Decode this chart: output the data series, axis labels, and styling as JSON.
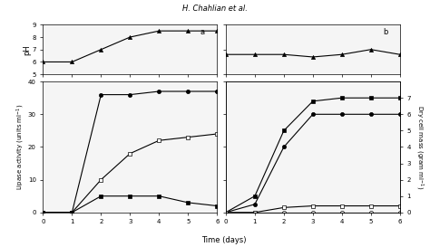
{
  "title": "H. Chahlian et al.",
  "time_days": [
    0,
    1,
    2,
    3,
    4,
    5,
    6
  ],
  "panel_a_ph": {
    "triangle": [
      6.0,
      6.0,
      7.0,
      8.0,
      8.5,
      8.5,
      8.5
    ]
  },
  "panel_b_ph": {
    "triangle": [
      5.9,
      5.9,
      5.9,
      5.85,
      5.9,
      6.0,
      5.9
    ]
  },
  "panel_c_lipase": {
    "filled_circle": [
      0,
      0,
      36,
      36,
      37,
      37,
      37
    ],
    "open_square": [
      0,
      0,
      10,
      18,
      22,
      23,
      24
    ],
    "filled_square": [
      0,
      0,
      5,
      5,
      5,
      3,
      2
    ]
  },
  "panel_d_dcm": {
    "filled_square": [
      0,
      1,
      5,
      6.8,
      7.0,
      7.0,
      7.0
    ],
    "filled_circle": [
      0,
      0.5,
      4,
      6.0,
      6.0,
      6.0,
      6.0
    ],
    "open_square": [
      0,
      0,
      0.3,
      0.4,
      0.4,
      0.4,
      0.4
    ],
    "open_circle": [
      0,
      0,
      0,
      0,
      0,
      0,
      0
    ]
  },
  "ph_ylim_a": [
    5,
    9
  ],
  "ph_yticks_a": [
    5,
    6,
    7,
    8,
    9
  ],
  "ph_ylim_b": [
    5.5,
    6.5
  ],
  "ph_yticks_b": [
    5.5,
    6.0,
    6.5
  ],
  "lipase_ylim": [
    0,
    40
  ],
  "lipase_yticks": [
    0,
    10,
    20,
    30,
    40
  ],
  "dcm_ylim": [
    0,
    8
  ],
  "dcm_yticks": [
    0,
    2,
    4,
    6,
    8
  ],
  "dcm_right_yticks": [
    0,
    1,
    2,
    3,
    4,
    5,
    6,
    7
  ],
  "bg_color": "#f0f0f0",
  "panel_bg": "#f5f5f5"
}
